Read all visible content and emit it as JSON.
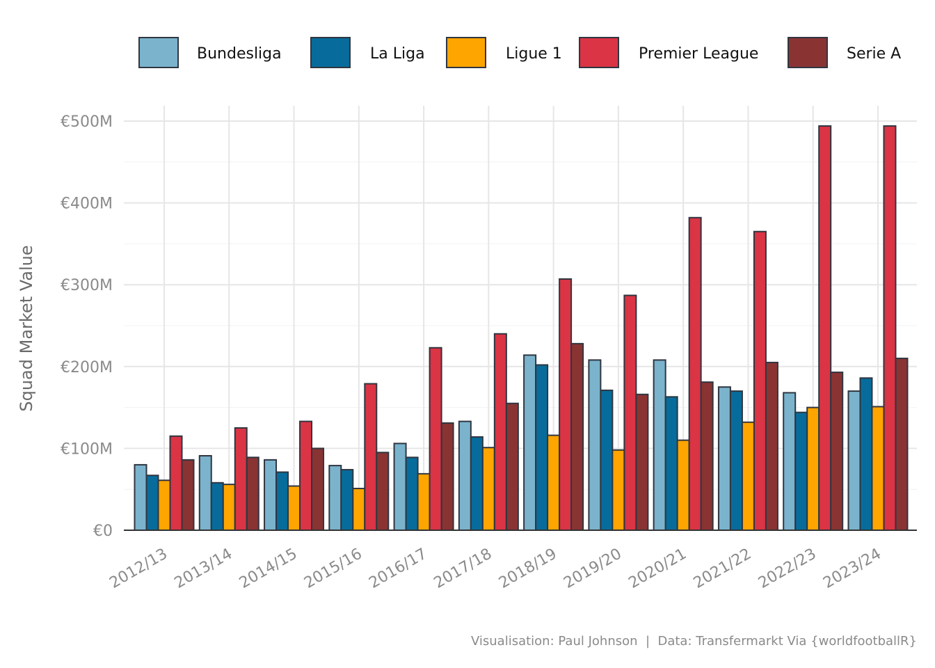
{
  "chart_data": {
    "type": "bar",
    "ylabel": "Squad Market Value",
    "caption": "Visualisation: Paul Johnson  |  Data: Transfermarkt Via {worldfootballR}",
    "categories": [
      "2012/13",
      "2013/14",
      "2014/15",
      "2015/16",
      "2016/17",
      "2017/18",
      "2018/19",
      "2019/20",
      "2020/21",
      "2021/22",
      "2022/23",
      "2023/24"
    ],
    "y_ticks": [
      0,
      100,
      200,
      300,
      400,
      500
    ],
    "y_tick_labels": [
      "€0",
      "€100M",
      "€200M",
      "€300M",
      "€400M",
      "€500M"
    ],
    "ylim": [
      0,
      520
    ],
    "grid": true,
    "legend_position": "top",
    "series": [
      {
        "name": "Bundesliga",
        "color": "#7BB3CC",
        "values": [
          80,
          91,
          86,
          79,
          106,
          133,
          214,
          208,
          208,
          175,
          168,
          170
        ]
      },
      {
        "name": "La Liga",
        "color": "#076C9B",
        "values": [
          67,
          58,
          71,
          74,
          89,
          114,
          202,
          171,
          163,
          170,
          144,
          186
        ]
      },
      {
        "name": "Ligue 1",
        "color": "#FFA500",
        "values": [
          61,
          56,
          54,
          51,
          69,
          101,
          116,
          98,
          110,
          132,
          150,
          151
        ]
      },
      {
        "name": "Premier League",
        "color": "#DA3445",
        "values": [
          115,
          125,
          133,
          179,
          223,
          240,
          307,
          287,
          382,
          365,
          494,
          494
        ]
      },
      {
        "name": "Serie A",
        "color": "#8A3333",
        "values": [
          86,
          89,
          100,
          95,
          131,
          155,
          228,
          166,
          181,
          205,
          193,
          210
        ]
      }
    ]
  }
}
